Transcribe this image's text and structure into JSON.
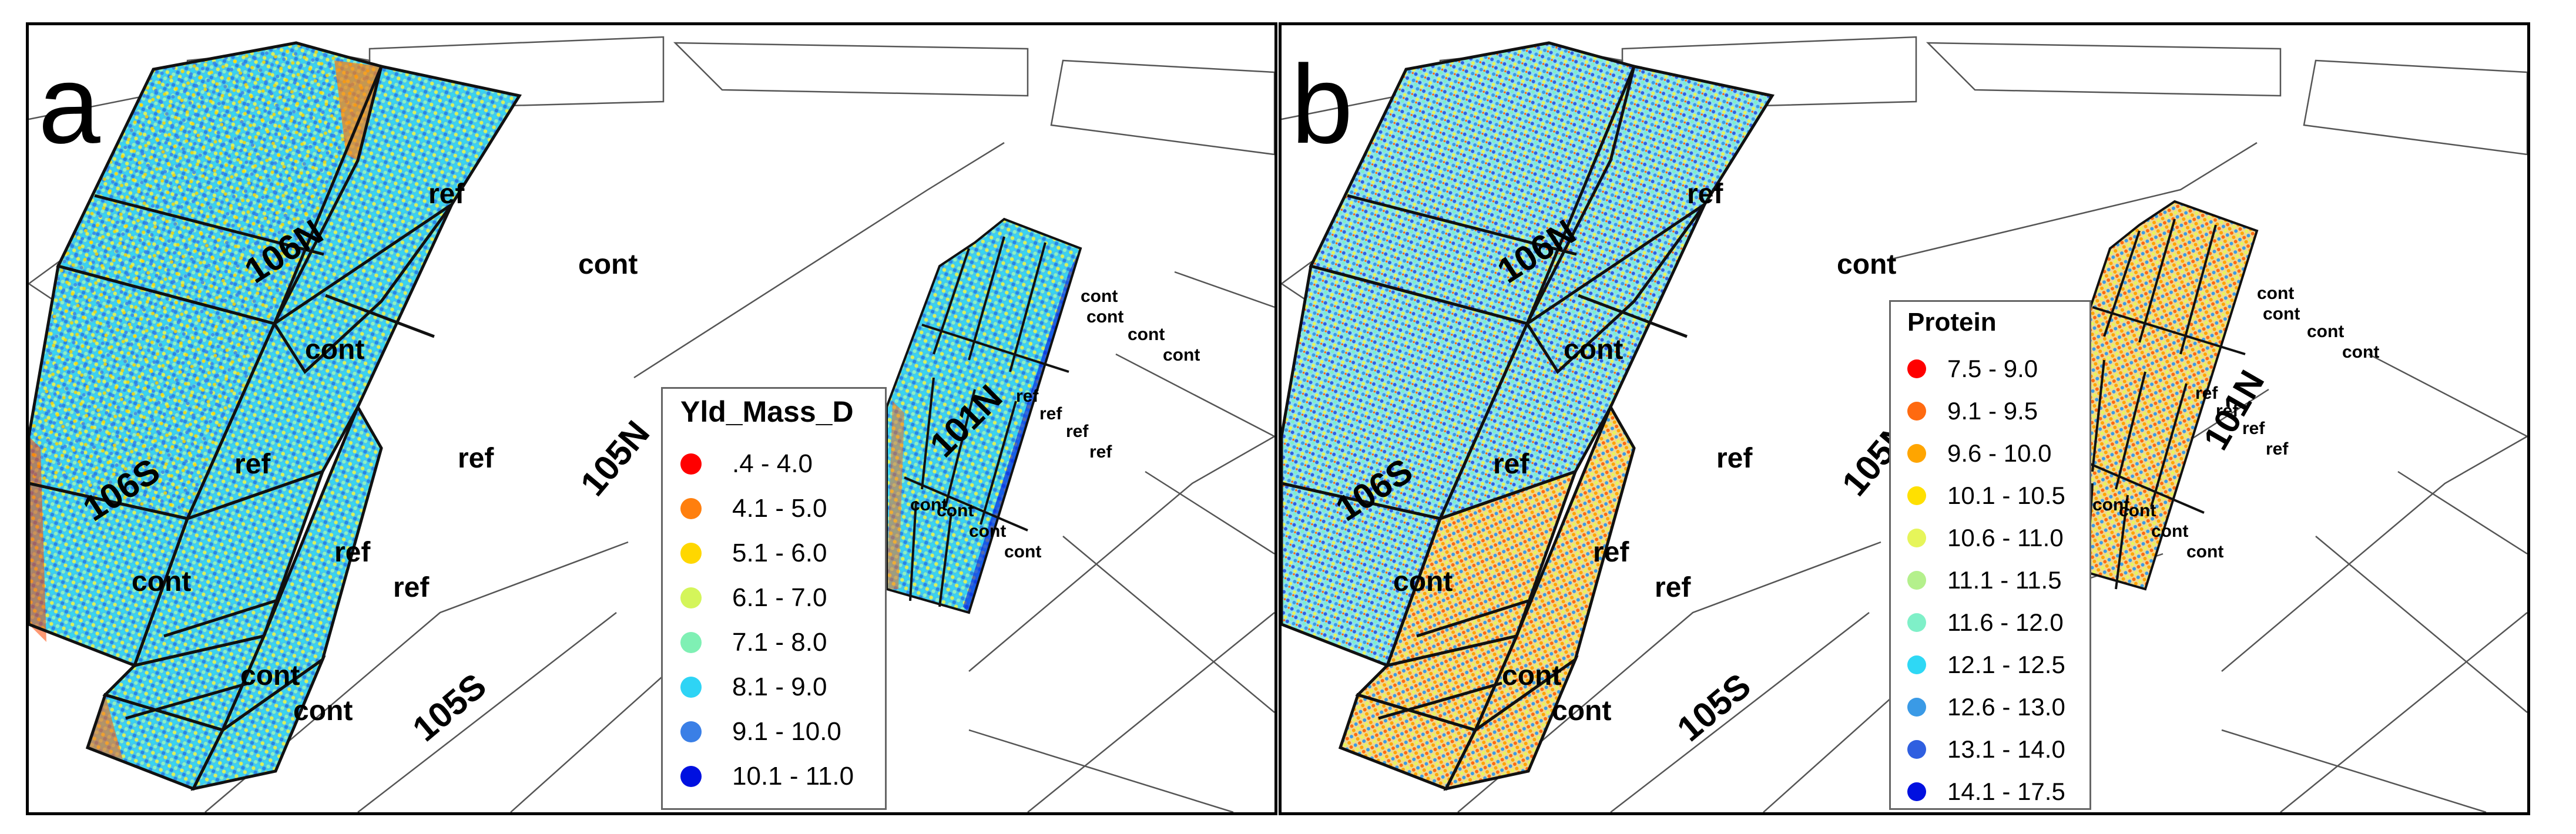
{
  "panels": [
    {
      "letter": "a",
      "field_labels": [
        "106N",
        "106S",
        "105N",
        "105S",
        "101N"
      ],
      "plot_labels": [
        "ref",
        "cont",
        "cont",
        "ref",
        "ref",
        "cont",
        "ref",
        "ref",
        "cont",
        "cont"
      ],
      "small_plot_labels": [
        "cont",
        "cont",
        "cont",
        "cont",
        "ref",
        "ref",
        "ref",
        "ref",
        "cont",
        "cont",
        "cont",
        "cont"
      ],
      "legend": {
        "title": "Yld_Mass_D",
        "items": [
          {
            "label": ".4 - 4.0",
            "color": "#ff0000"
          },
          {
            "label": "4.1 - 5.0",
            "color": "#ff7f0e"
          },
          {
            "label": "5.1 - 6.0",
            "color": "#ffd700"
          },
          {
            "label": "6.1 - 7.0",
            "color": "#d4f55a"
          },
          {
            "label": "7.1 - 8.0",
            "color": "#7ff0b4"
          },
          {
            "label": "8.1 - 9.0",
            "color": "#2ed4f5"
          },
          {
            "label": "9.1 - 10.0",
            "color": "#3a7fe6"
          },
          {
            "label": "10.1 - 11.0",
            "color": "#0010e0"
          }
        ]
      }
    },
    {
      "letter": "b",
      "field_labels": [
        "106N",
        "106S",
        "105N",
        "105S",
        "101N"
      ],
      "plot_labels": [
        "ref",
        "cont",
        "cont",
        "ref",
        "ref",
        "cont",
        "ref",
        "ref",
        "cont",
        "cont"
      ],
      "small_plot_labels": [
        "cont",
        "cont",
        "cont",
        "cont",
        "ref",
        "ref",
        "ref",
        "ref",
        "cont",
        "cont",
        "cont",
        "cont"
      ],
      "legend": {
        "title": "Protein",
        "items": [
          {
            "label": "7.5 - 9.0",
            "color": "#ff0000"
          },
          {
            "label": "9.1 - 9.5",
            "color": "#ff6a10"
          },
          {
            "label": "9.6 - 10.0",
            "color": "#ffa500"
          },
          {
            "label": "10.1 - 10.5",
            "color": "#ffe000"
          },
          {
            "label": "10.6 - 11.0",
            "color": "#e6f55a"
          },
          {
            "label": "11.1 - 11.5",
            "color": "#b4f08c"
          },
          {
            "label": "11.6 - 12.0",
            "color": "#7ff0c8"
          },
          {
            "label": "12.1 - 12.5",
            "color": "#2ed8f5"
          },
          {
            "label": "12.6 - 13.0",
            "color": "#3a9ae6"
          },
          {
            "label": "13.1 - 14.0",
            "color": "#2f5fe0"
          },
          {
            "label": "14.1 - 17.5",
            "color": "#0010e0"
          }
        ]
      }
    }
  ]
}
